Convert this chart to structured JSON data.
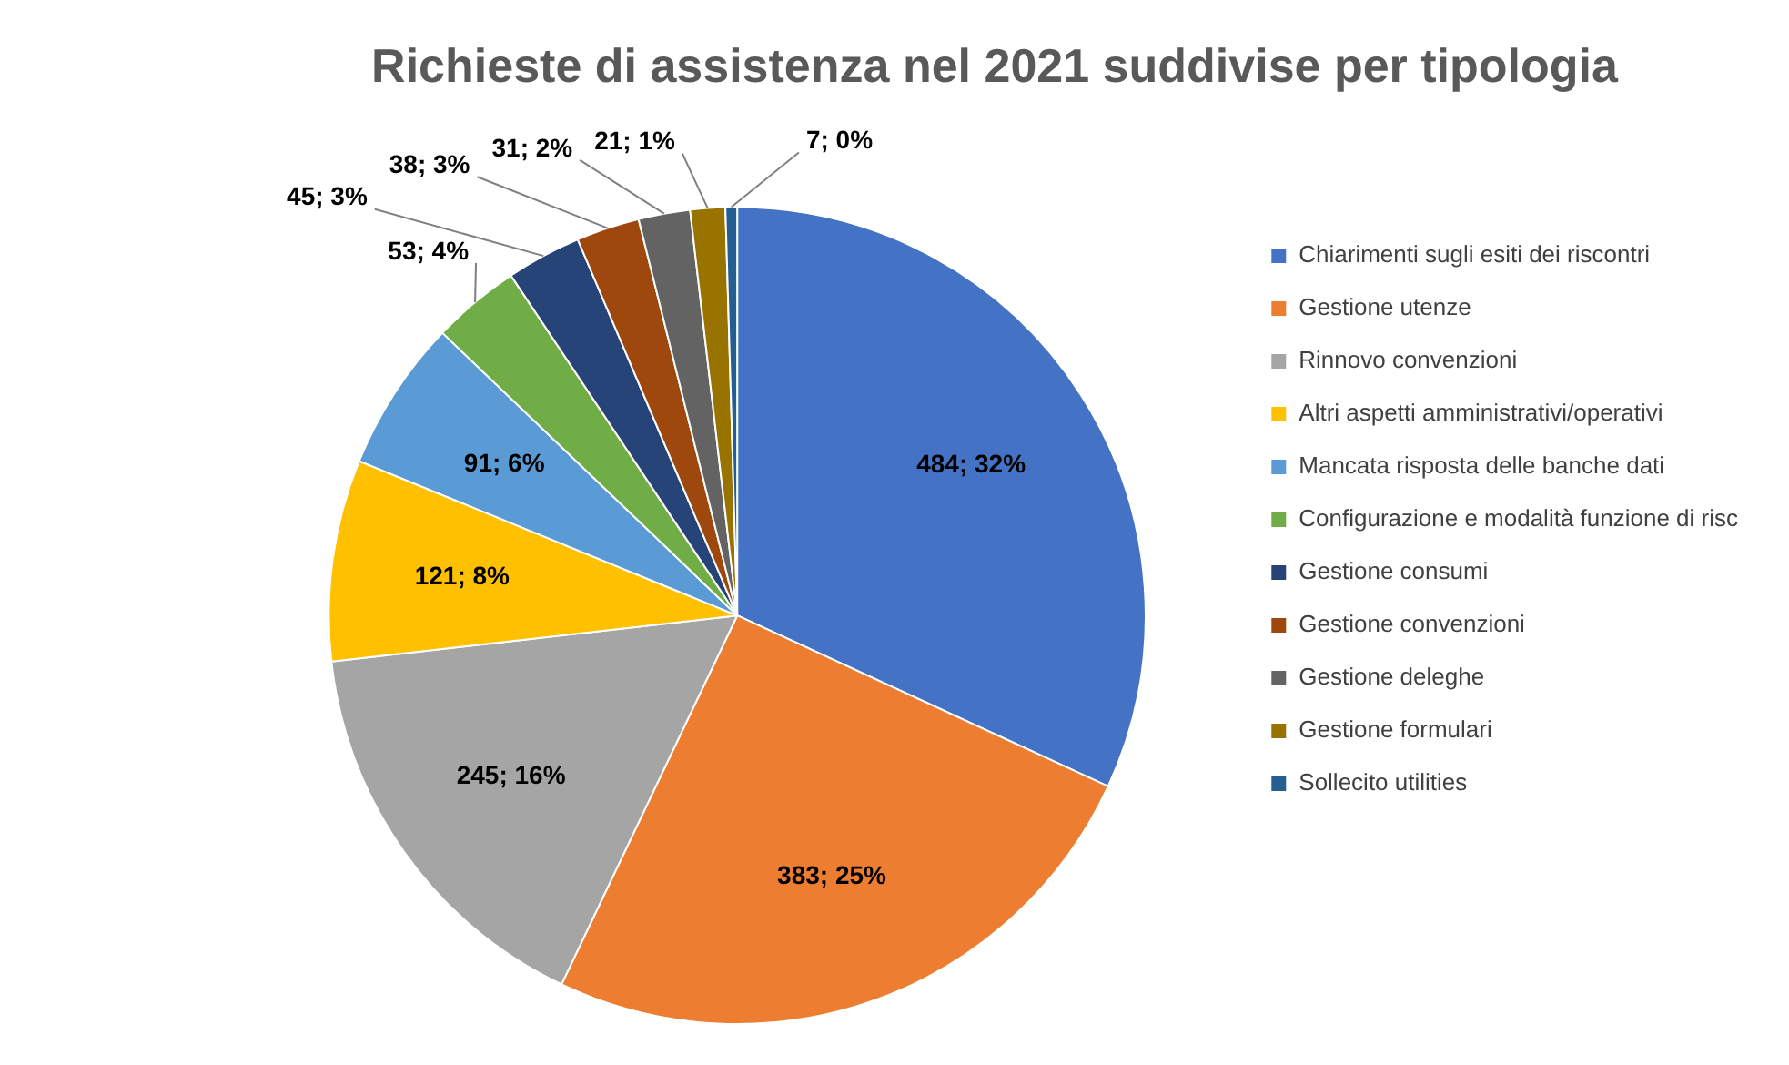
{
  "chart_data": {
    "type": "pie",
    "title": "Richieste di assistenza nel 2021 suddivise per tipologia",
    "categories": [
      "Chiarimenti sugli esiti dei riscontri",
      "Gestione utenze",
      "Rinnovo convenzioni",
      "Altri aspetti amministrativi/operativi",
      "Mancata risposta delle banche dati",
      "Configurazione e modalità funzione di risc",
      "Gestione consumi",
      "Gestione convenzioni",
      "Gestione deleghe",
      "Gestione formulari",
      "Sollecito utilities"
    ],
    "values": [
      484,
      383,
      245,
      121,
      91,
      53,
      45,
      38,
      31,
      21,
      7
    ],
    "colors": [
      "#4472c4",
      "#ed7d31",
      "#a5a5a5",
      "#ffc000",
      "#5b9bd5",
      "#70ad47",
      "#264478",
      "#9e480e",
      "#636363",
      "#997300",
      "#255e91"
    ],
    "value_labels": [
      "484; 32%",
      "383; 25%",
      "245; 16%",
      "121; 8%",
      "91; 6%",
      "53; 4%",
      "45; 3%",
      "38; 3%",
      "31; 2%",
      "21; 1%",
      "7; 0%"
    ],
    "legend": "right"
  }
}
